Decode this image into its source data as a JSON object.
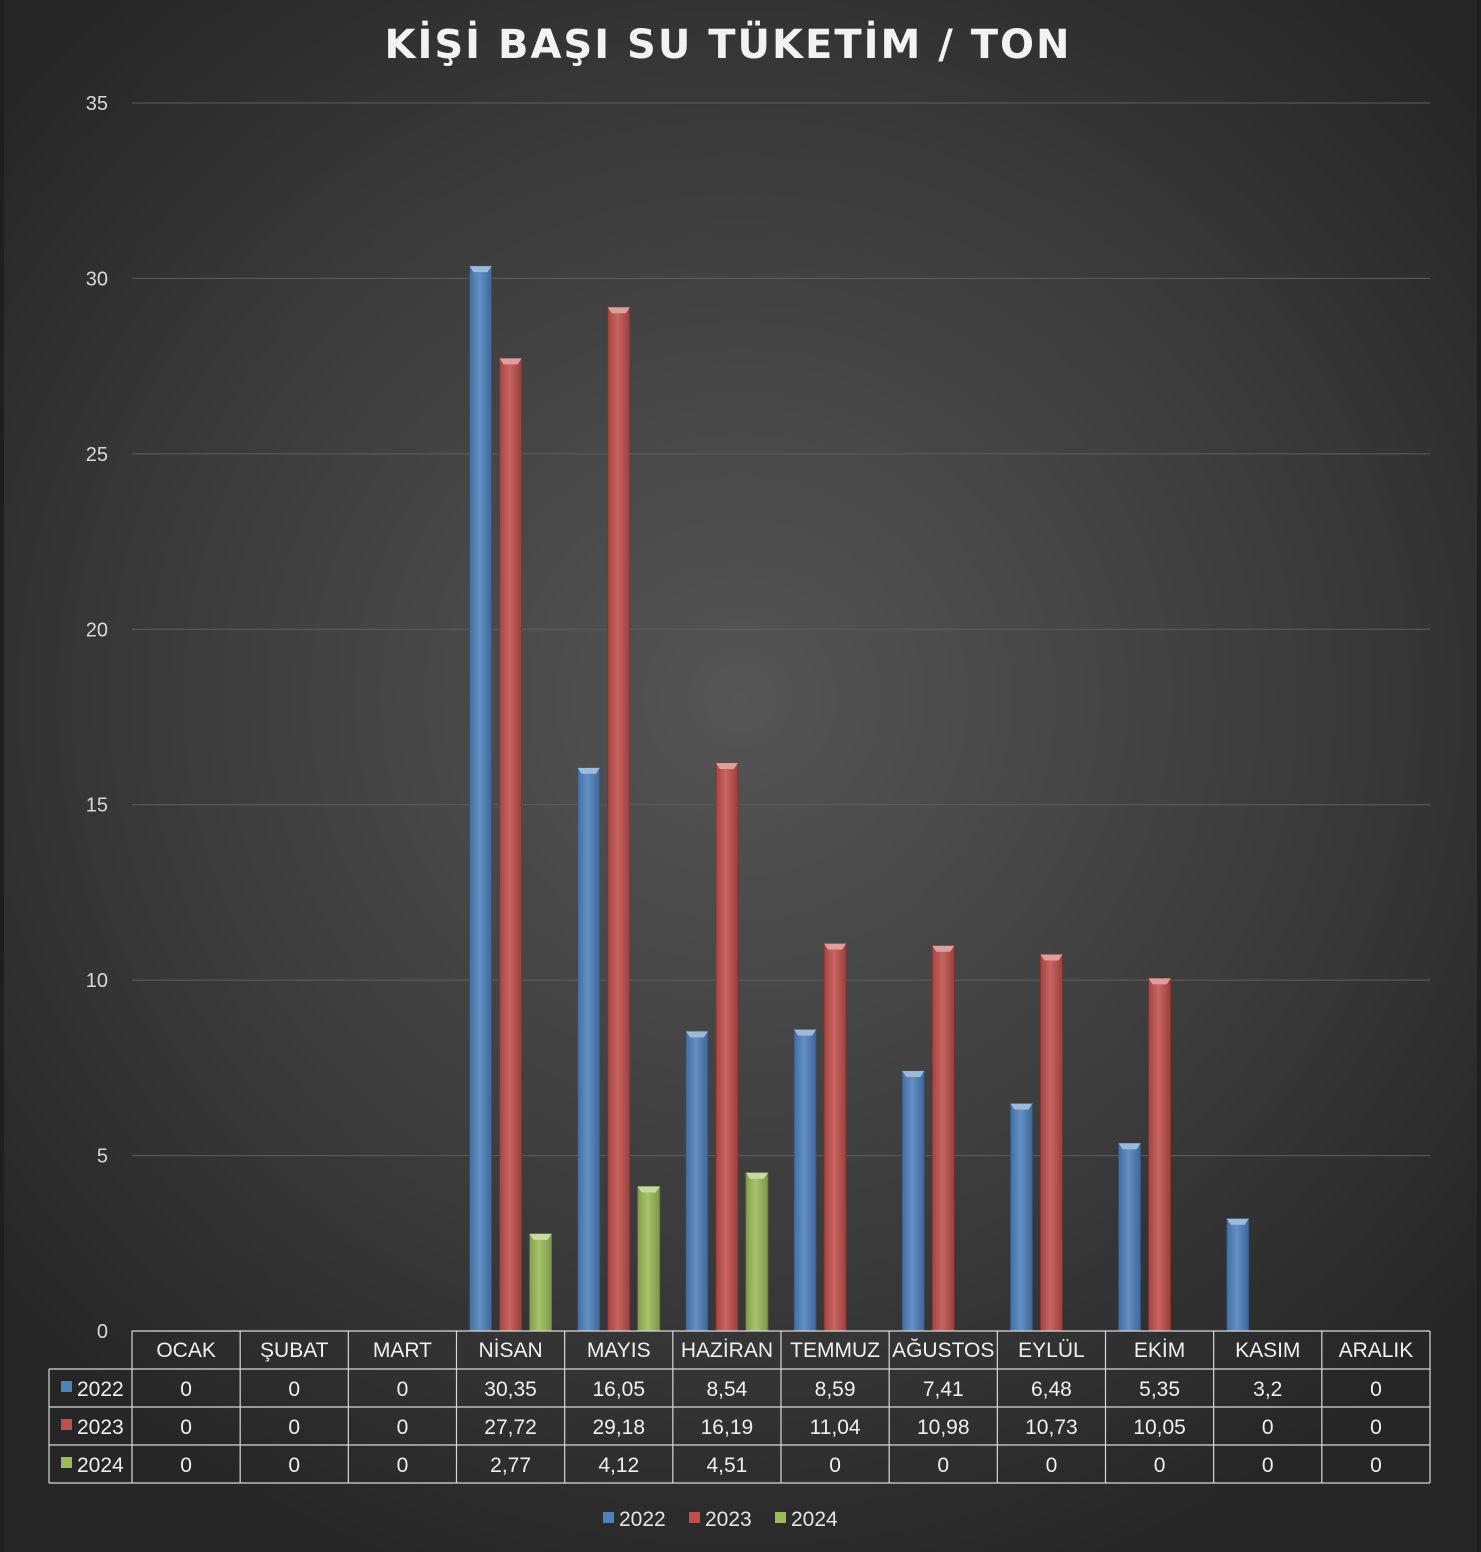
{
  "chart_data": {
    "type": "bar",
    "title": "KİŞİ BAŞI SU TÜKETİM / TON",
    "categories": [
      "OCAK",
      "ŞUBAT",
      "MART",
      "NİSAN",
      "MAYIS",
      "HAZİRAN",
      "TEMMUZ",
      "AĞUSTOS",
      "EYLÜL",
      "EKİM",
      "KASIM",
      "ARALIK"
    ],
    "series": [
      {
        "name": "2022",
        "color": "#4f81bd",
        "values": [
          0,
          0,
          0,
          30.35,
          16.05,
          8.54,
          8.59,
          7.41,
          6.48,
          5.35,
          3.2,
          0
        ],
        "labels": [
          "0",
          "0",
          "0",
          "30,35",
          "16,05",
          "8,54",
          "8,59",
          "7,41",
          "6,48",
          "5,35",
          "3,2",
          "0"
        ]
      },
      {
        "name": "2023",
        "color": "#c0504d",
        "values": [
          0,
          0,
          0,
          27.72,
          29.18,
          16.19,
          11.04,
          10.98,
          10.73,
          10.05,
          0,
          0
        ],
        "labels": [
          "0",
          "0",
          "0",
          "27,72",
          "29,18",
          "16,19",
          "11,04",
          "10,98",
          "10,73",
          "10,05",
          "0",
          "0"
        ]
      },
      {
        "name": "2024",
        "color": "#9bbb59",
        "values": [
          0,
          0,
          0,
          2.77,
          4.12,
          4.51,
          0,
          0,
          0,
          0,
          0,
          0
        ],
        "labels": [
          "0",
          "0",
          "0",
          "2,77",
          "4,12",
          "4,51",
          "0",
          "0",
          "0",
          "0",
          "0",
          "0"
        ]
      }
    ],
    "ylim": [
      0,
      35
    ],
    "yticks": [
      0,
      5,
      10,
      15,
      20,
      25,
      30,
      35
    ],
    "grid": true,
    "legend": "bottom-center",
    "data_table": true
  }
}
